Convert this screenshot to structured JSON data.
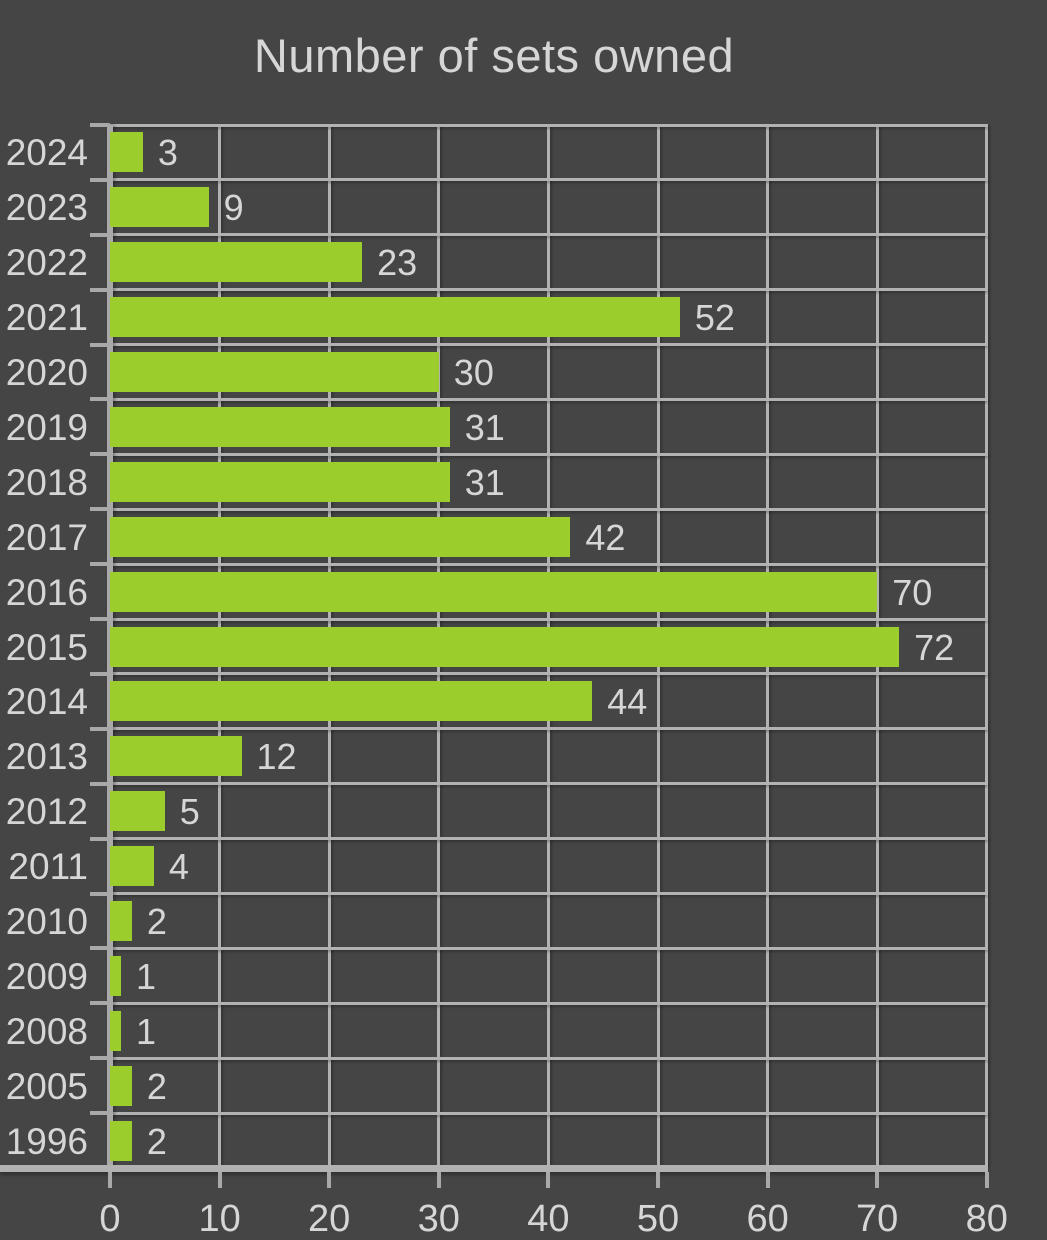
{
  "chart_data": {
    "type": "bar",
    "orientation": "horizontal",
    "title": "Number of sets owned",
    "categories": [
      "2024",
      "2023",
      "2022",
      "2021",
      "2020",
      "2019",
      "2018",
      "2017",
      "2016",
      "2015",
      "2014",
      "2013",
      "2012",
      "2011",
      "2010",
      "2009",
      "2008",
      "2005",
      "1996"
    ],
    "values": [
      3,
      9,
      23,
      52,
      30,
      31,
      31,
      42,
      70,
      72,
      44,
      12,
      5,
      4,
      2,
      1,
      1,
      2,
      2
    ],
    "xlabel": "",
    "ylabel": "",
    "xlim": [
      0,
      80
    ],
    "x_ticks": [
      0,
      10,
      20,
      30,
      40,
      50,
      60,
      70,
      80
    ],
    "grid": true,
    "legend": "none",
    "colors": {
      "bar": "#9bcd2d",
      "background": "#454545",
      "grid": "#b2b2b2",
      "axis": "#a9a9a9",
      "text": "#d6d6d6"
    }
  }
}
